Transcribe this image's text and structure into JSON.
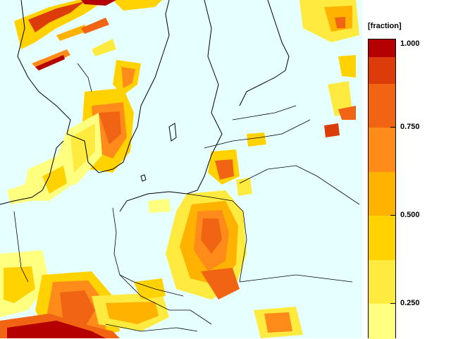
{
  "map": {
    "title": "",
    "background_color": "#e6ffff",
    "border_color": "#000000",
    "field_colors": [
      "#ffff80",
      "#ffea40",
      "#ffd200",
      "#ffb200",
      "#ff8c1a",
      "#f06414",
      "#dc3c0a",
      "#b40000"
    ]
  },
  "legend": {
    "unit_label": "[fraction]",
    "min": 0.15,
    "max": 1.0,
    "classes": [
      {
        "from": 0.15,
        "to": 0.25,
        "color": "#ffff80"
      },
      {
        "from": 0.25,
        "to": 0.375,
        "color": "#ffea40"
      },
      {
        "from": 0.375,
        "to": 0.5,
        "color": "#ffd200"
      },
      {
        "from": 0.5,
        "to": 0.625,
        "color": "#ffb200"
      },
      {
        "from": 0.625,
        "to": 0.75,
        "color": "#ff8c1a"
      },
      {
        "from": 0.75,
        "to": 0.875,
        "color": "#f06414"
      },
      {
        "from": 0.875,
        "to": 0.95,
        "color": "#dc3c0a"
      },
      {
        "from": 0.95,
        "to": 1.0,
        "color": "#b40000"
      }
    ],
    "ticks": [
      {
        "value": 1.0,
        "label": "1.000"
      },
      {
        "value": 0.75,
        "label": "0.750"
      },
      {
        "value": 0.5,
        "label": "0.500"
      },
      {
        "value": 0.25,
        "label": "0.250"
      }
    ]
  }
}
